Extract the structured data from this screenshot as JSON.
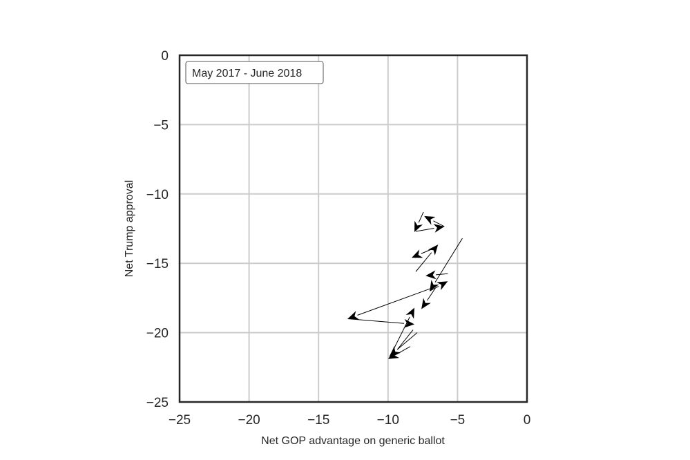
{
  "chart_data": {
    "type": "quiver",
    "title": "",
    "legend": {
      "label": "May 2017 - June 2018",
      "position": "upper left"
    },
    "xlabel": "Net GOP advantage on generic ballot",
    "ylabel": "Net Trump approval",
    "xlim": [
      -25,
      0
    ],
    "ylim": [
      -25,
      0
    ],
    "grid": true,
    "x_ticks": [
      -25,
      -20,
      -15,
      -10,
      -5,
      0
    ],
    "y_ticks": [
      0,
      -5,
      -10,
      -15,
      -20,
      -25
    ],
    "x_tick_labels": [
      "−25",
      "−20",
      "−15",
      "−10",
      "−5",
      "0"
    ],
    "y_tick_labels": [
      "0",
      "−5",
      "−10",
      "−15",
      "−20",
      "−25"
    ],
    "segments": [
      {
        "x0": -7.45,
        "y0": -11.3,
        "x1": -8.1,
        "y1": -12.75
      },
      {
        "x0": -8.0,
        "y0": -12.7,
        "x1": -5.95,
        "y1": -12.35
      },
      {
        "x0": -5.95,
        "y0": -12.35,
        "x1": -7.4,
        "y1": -11.6
      },
      {
        "x0": -8.0,
        "y0": -15.6,
        "x1": -6.4,
        "y1": -13.65
      },
      {
        "x0": -6.9,
        "y0": -14.0,
        "x1": -8.3,
        "y1": -14.6
      },
      {
        "x0": -5.7,
        "y0": -15.75,
        "x1": -7.3,
        "y1": -15.9
      },
      {
        "x0": -4.65,
        "y0": -13.2,
        "x1": -7.0,
        "y1": -17.0
      },
      {
        "x0": -7.0,
        "y0": -17.0,
        "x1": -5.7,
        "y1": -16.3
      },
      {
        "x0": -6.6,
        "y0": -16.8,
        "x1": -7.6,
        "y1": -18.3
      },
      {
        "x0": -6.6,
        "y0": -16.7,
        "x1": -12.9,
        "y1": -19.0
      },
      {
        "x0": -12.9,
        "y0": -19.0,
        "x1": -8.1,
        "y1": -19.4
      },
      {
        "x0": -8.2,
        "y0": -19.8,
        "x1": -9.8,
        "y1": -21.8
      },
      {
        "x0": -9.9,
        "y0": -21.8,
        "x1": -8.1,
        "y1": -18.2
      },
      {
        "x0": -7.9,
        "y0": -20.0,
        "x1": -9.9,
        "y1": -21.7
      },
      {
        "x0": -8.4,
        "y0": -21.0,
        "x1": -10.0,
        "y1": -21.9
      }
    ],
    "colors": {
      "arrow": "#000000",
      "grid": "#cccccc",
      "spine": "#262626",
      "background": "#ffffff"
    }
  }
}
